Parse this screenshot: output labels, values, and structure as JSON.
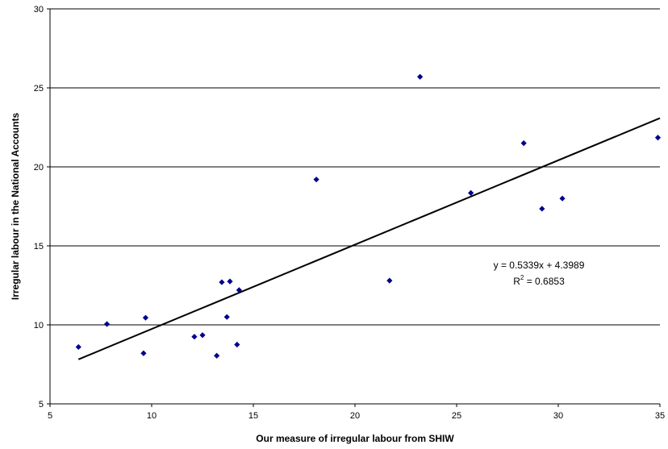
{
  "chart_data": {
    "type": "scatter",
    "title": "",
    "xlabel": "Our measure of irregular labour from SHIW",
    "ylabel": "Irregular labour in the National Accounts",
    "xlim": [
      5,
      35
    ],
    "ylim": [
      5,
      30
    ],
    "xticks": [
      5,
      10,
      15,
      20,
      25,
      30,
      35
    ],
    "yticks": [
      5,
      10,
      15,
      20,
      25,
      30
    ],
    "grid": "horizontal",
    "legend": "none",
    "marker_color": "#00008B",
    "trendline_color": "#000000",
    "points": [
      {
        "x": 6.4,
        "y": 8.6
      },
      {
        "x": 7.8,
        "y": 10.05
      },
      {
        "x": 9.6,
        "y": 8.2
      },
      {
        "x": 9.7,
        "y": 10.45
      },
      {
        "x": 12.1,
        "y": 9.25
      },
      {
        "x": 12.5,
        "y": 9.35
      },
      {
        "x": 13.2,
        "y": 8.05
      },
      {
        "x": 13.45,
        "y": 12.7
      },
      {
        "x": 13.7,
        "y": 10.5
      },
      {
        "x": 13.85,
        "y": 12.75
      },
      {
        "x": 14.2,
        "y": 8.75
      },
      {
        "x": 14.3,
        "y": 12.2
      },
      {
        "x": 18.1,
        "y": 19.2
      },
      {
        "x": 21.7,
        "y": 12.8
      },
      {
        "x": 23.2,
        "y": 25.7
      },
      {
        "x": 25.7,
        "y": 18.35
      },
      {
        "x": 28.3,
        "y": 21.5
      },
      {
        "x": 29.2,
        "y": 17.35
      },
      {
        "x": 30.2,
        "y": 18.0
      },
      {
        "x": 34.9,
        "y": 21.85
      }
    ],
    "trendline": {
      "slope": 0.5339,
      "intercept": 4.3989,
      "x_range": [
        6.4,
        35
      ],
      "equation": "y = 0.5339x + 4.3989",
      "r2_prefix": "R",
      "r2_sup": "2",
      "r2_value": " = 0.6853"
    }
  }
}
